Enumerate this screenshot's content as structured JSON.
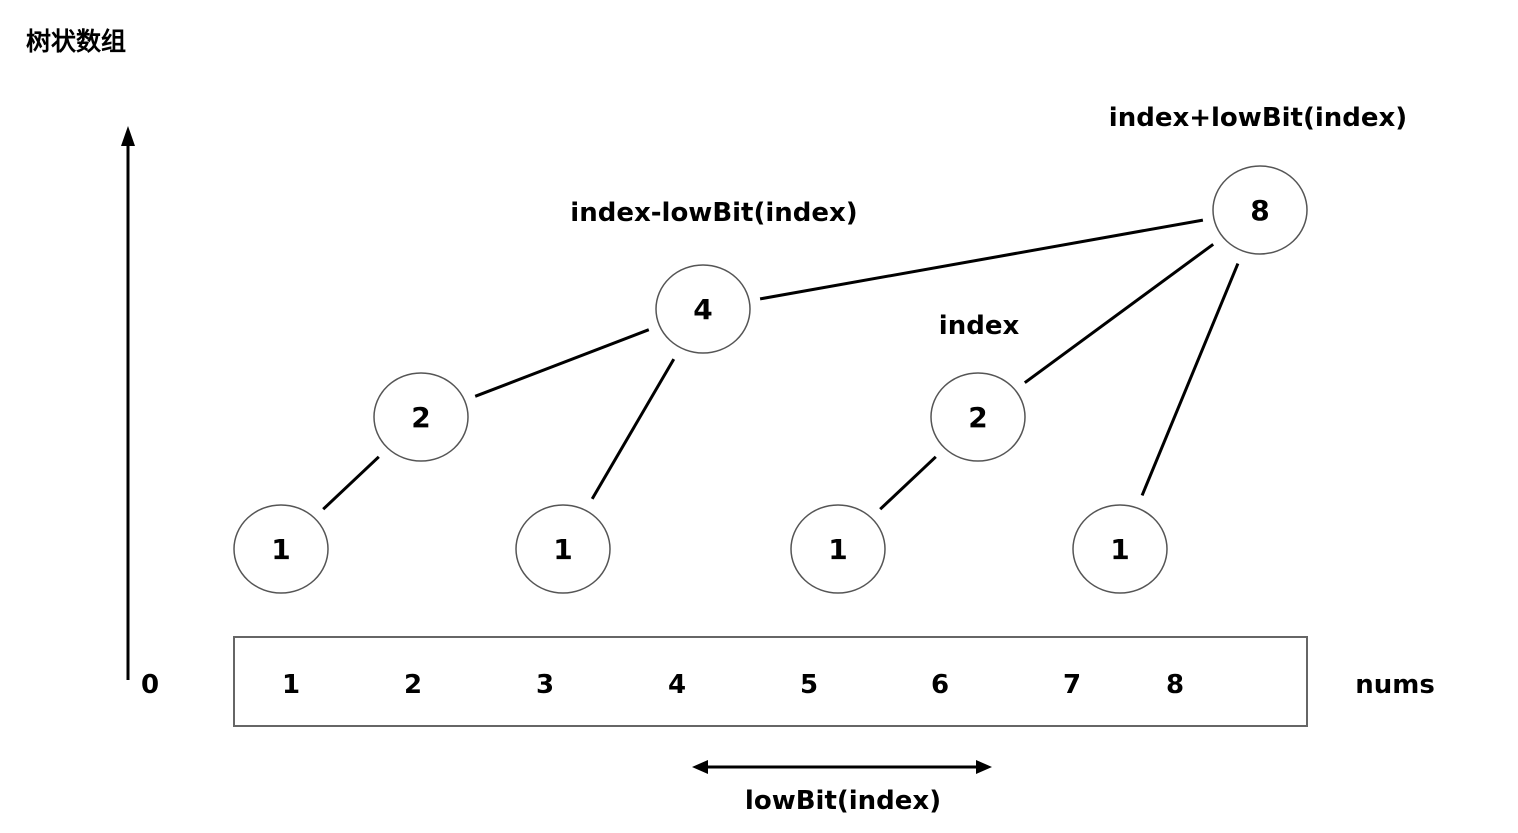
{
  "title": "树状数组",
  "labels": {
    "upper_formula": "index+lowBit(index)",
    "lower_formula": "index-lowBit(index)",
    "index": "index",
    "nums": "nums",
    "lowbit": "lowBit(index)",
    "zero": "0"
  },
  "tree": {
    "nodes": [
      {
        "id": "n8",
        "value": "8"
      },
      {
        "id": "n4",
        "value": "4"
      },
      {
        "id": "n2a",
        "value": "2"
      },
      {
        "id": "n2b",
        "value": "2"
      },
      {
        "id": "n1a",
        "value": "1"
      },
      {
        "id": "n1b",
        "value": "1"
      },
      {
        "id": "n1c",
        "value": "1"
      },
      {
        "id": "n1d",
        "value": "1"
      }
    ],
    "edges": [
      [
        "n4",
        "n8"
      ],
      [
        "n2b",
        "n8"
      ],
      [
        "n1d",
        "n8"
      ],
      [
        "n2a",
        "n4"
      ],
      [
        "n1b",
        "n4"
      ],
      [
        "n1a",
        "n2a"
      ],
      [
        "n1c",
        "n2b"
      ]
    ]
  },
  "nums": [
    "1",
    "2",
    "3",
    "4",
    "5",
    "6",
    "7",
    "8"
  ],
  "colors": {
    "stroke": "#000000",
    "node_border": "#555555",
    "box_border": "#666666"
  }
}
